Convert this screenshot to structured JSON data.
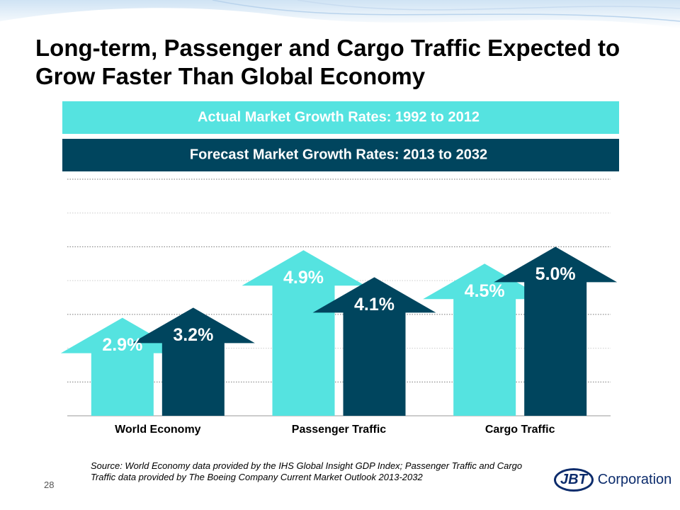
{
  "title": "Long-term, Passenger and Cargo Traffic Expected to Grow Faster Than Global Economy",
  "chart_data": {
    "type": "arrow-bar",
    "categories": [
      "World Economy",
      "Passenger Traffic",
      "Cargo Traffic"
    ],
    "series": [
      {
        "name": "Actual Market Growth Rates:  1992 to 2012",
        "color": "#55e3e0",
        "values": [
          2.9,
          4.9,
          4.5
        ],
        "value_labels": [
          "2.9%",
          "4.9%",
          "4.5%"
        ]
      },
      {
        "name": "Forecast Market Growth Rates: 2013 to 2032",
        "color": "#00455e",
        "values": [
          3.2,
          4.1,
          5.0
        ],
        "value_labels": [
          "3.2%",
          "4.1%",
          "5.0%"
        ]
      }
    ],
    "ylim": [
      0,
      7
    ],
    "yticks": [
      0,
      1,
      2,
      3,
      4,
      5,
      6,
      7
    ],
    "grid": true
  },
  "source": "Source: World Economy data provided by the IHS Global Insight  GDP Index; Passenger Traffic and Cargo Traffic data provided by The Boeing Company Current Market Outlook 2013-2032",
  "page_number": "28",
  "logo": {
    "mark": "JBT",
    "name": "Corporation"
  }
}
